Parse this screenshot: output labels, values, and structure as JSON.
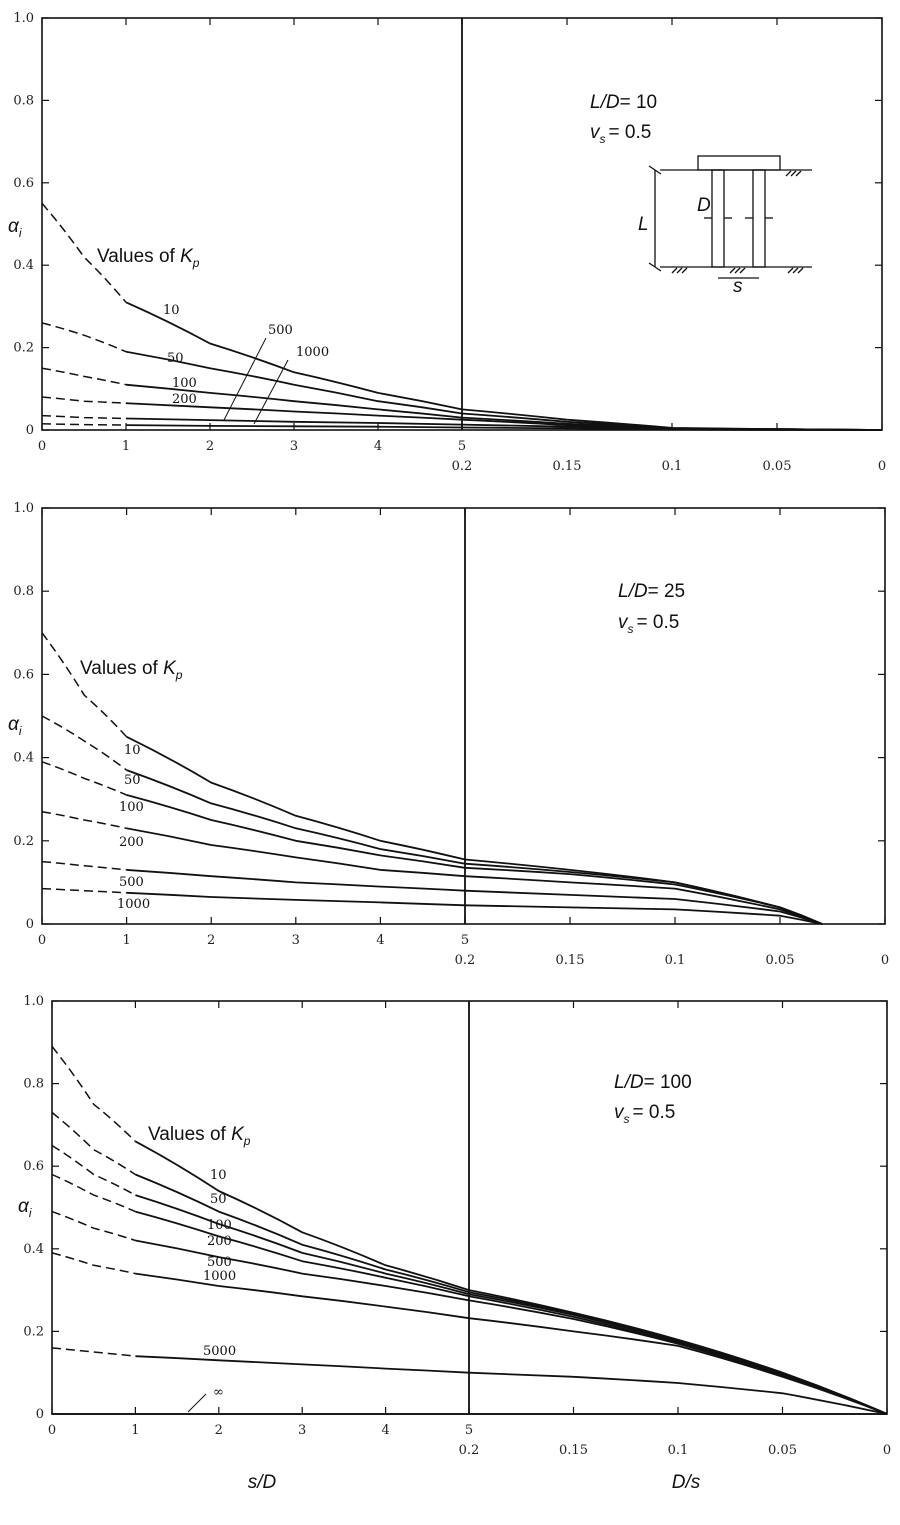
{
  "chart_data": [
    {
      "type": "line",
      "title": "",
      "xlabel": "",
      "x2label": "",
      "ylabel": "αi",
      "annotation": {
        "ratio_label": "L/D",
        "ratio_value": "= 10",
        "nu_label": "vs",
        "nu_value": "= 0.5"
      },
      "kp_label": "Values of Kp",
      "ylim": [
        0,
        1.0
      ],
      "xlim_s_over_D": [
        0,
        5
      ],
      "xlim_D_over_s": [
        0.2,
        0
      ],
      "yticks": [
        "0",
        "0.2",
        "0.4",
        "0.6",
        "0.8",
        "1.0"
      ],
      "xticks_left": [
        "0",
        "1",
        "2",
        "3",
        "4",
        "5"
      ],
      "xticks_right": [
        "0.2",
        "0.15",
        "0.1",
        "0.05",
        "0"
      ],
      "sketch": {
        "cap_label": "L",
        "d_label": "D",
        "s_label": "s"
      },
      "series": [
        {
          "name": "10",
          "values": [
            [
              0,
              0.55
            ],
            [
              0.5,
              0.42
            ],
            [
              1,
              0.31
            ],
            [
              2,
              0.21
            ],
            [
              3,
              0.14
            ],
            [
              4,
              0.09
            ],
            [
              5,
              0.05
            ],
            [
              0.15,
              0.025
            ],
            [
              0.1,
              0.005
            ],
            [
              0.05,
              0.002
            ],
            [
              0,
              0.0
            ]
          ]
        },
        {
          "name": "50",
          "values": [
            [
              0,
              0.26
            ],
            [
              0.5,
              0.23
            ],
            [
              1,
              0.19
            ],
            [
              2,
              0.15
            ],
            [
              3,
              0.11
            ],
            [
              4,
              0.07
            ],
            [
              5,
              0.04
            ],
            [
              0.15,
              0.02
            ],
            [
              0.1,
              0.004
            ],
            [
              0.05,
              0.002
            ],
            [
              0,
              0.0
            ]
          ]
        },
        {
          "name": "100",
          "values": [
            [
              0,
              0.15
            ],
            [
              0.5,
              0.13
            ],
            [
              1,
              0.11
            ],
            [
              2,
              0.09
            ],
            [
              3,
              0.07
            ],
            [
              4,
              0.05
            ],
            [
              5,
              0.03
            ],
            [
              0.15,
              0.015
            ],
            [
              0.1,
              0.004
            ],
            [
              0.05,
              0.002
            ],
            [
              0,
              0.0
            ]
          ]
        },
        {
          "name": "200",
          "values": [
            [
              0,
              0.08
            ],
            [
              0.5,
              0.07
            ],
            [
              1,
              0.065
            ],
            [
              2,
              0.055
            ],
            [
              3,
              0.045
            ],
            [
              4,
              0.035
            ],
            [
              5,
              0.025
            ],
            [
              0.15,
              0.012
            ],
            [
              0.1,
              0.003
            ],
            [
              0.05,
              0.002
            ],
            [
              0,
              0.0
            ]
          ]
        },
        {
          "name": "500",
          "values": [
            [
              0,
              0.035
            ],
            [
              0.5,
              0.03
            ],
            [
              1,
              0.028
            ],
            [
              2,
              0.024
            ],
            [
              3,
              0.02
            ],
            [
              4,
              0.017
            ],
            [
              5,
              0.013
            ],
            [
              0.15,
              0.008
            ],
            [
              0.1,
              0.002
            ],
            [
              0.05,
              0.001
            ],
            [
              0,
              0.0
            ]
          ]
        },
        {
          "name": "1000",
          "values": [
            [
              0,
              0.015
            ],
            [
              0.5,
              0.013
            ],
            [
              1,
              0.012
            ],
            [
              2,
              0.01
            ],
            [
              3,
              0.009
            ],
            [
              4,
              0.008
            ],
            [
              5,
              0.006
            ],
            [
              0.15,
              0.004
            ],
            [
              0.1,
              0.001
            ],
            [
              0.05,
              0.0
            ],
            [
              0,
              0.0
            ]
          ]
        }
      ]
    },
    {
      "type": "line",
      "title": "",
      "xlabel": "",
      "x2label": "",
      "ylabel": "αi",
      "annotation": {
        "ratio_label": "L/D",
        "ratio_value": "= 25",
        "nu_label": "vs",
        "nu_value": "= 0.5"
      },
      "kp_label": "Values of Kp",
      "ylim": [
        0,
        1.0
      ],
      "xlim_s_over_D": [
        0,
        5
      ],
      "xlim_D_over_s": [
        0.2,
        0
      ],
      "yticks": [
        "0",
        "0.2",
        "0.4",
        "0.6",
        "0.8",
        "1.0"
      ],
      "xticks_left": [
        "0",
        "1",
        "2",
        "3",
        "4",
        "5"
      ],
      "xticks_right": [
        "0.2",
        "0.15",
        "0.1",
        "0.05",
        "0"
      ],
      "series": [
        {
          "name": "10",
          "values": [
            [
              0,
              0.7
            ],
            [
              0.5,
              0.55
            ],
            [
              1,
              0.45
            ],
            [
              2,
              0.34
            ],
            [
              3,
              0.26
            ],
            [
              4,
              0.2
            ],
            [
              5,
              0.155
            ],
            [
              0.15,
              0.13
            ],
            [
              0.1,
              0.1
            ],
            [
              0.05,
              0.04
            ],
            [
              0.03,
              0.0
            ]
          ]
        },
        {
          "name": "50",
          "values": [
            [
              0,
              0.5
            ],
            [
              0.5,
              0.44
            ],
            [
              1,
              0.37
            ],
            [
              2,
              0.29
            ],
            [
              3,
              0.23
            ],
            [
              4,
              0.18
            ],
            [
              5,
              0.145
            ],
            [
              0.15,
              0.125
            ],
            [
              0.1,
              0.1
            ],
            [
              0.05,
              0.04
            ],
            [
              0.03,
              0.0
            ]
          ]
        },
        {
          "name": "100",
          "values": [
            [
              0,
              0.39
            ],
            [
              0.5,
              0.35
            ],
            [
              1,
              0.31
            ],
            [
              2,
              0.25
            ],
            [
              3,
              0.2
            ],
            [
              4,
              0.165
            ],
            [
              5,
              0.135
            ],
            [
              0.15,
              0.12
            ],
            [
              0.1,
              0.095
            ],
            [
              0.05,
              0.04
            ],
            [
              0.03,
              0.0
            ]
          ]
        },
        {
          "name": "200",
          "values": [
            [
              0,
              0.27
            ],
            [
              0.5,
              0.25
            ],
            [
              1,
              0.23
            ],
            [
              2,
              0.19
            ],
            [
              3,
              0.16
            ],
            [
              4,
              0.13
            ],
            [
              5,
              0.115
            ],
            [
              0.15,
              0.1
            ],
            [
              0.1,
              0.085
            ],
            [
              0.05,
              0.035
            ],
            [
              0.03,
              0.0
            ]
          ]
        },
        {
          "name": "500",
          "values": [
            [
              0,
              0.15
            ],
            [
              0.5,
              0.14
            ],
            [
              1,
              0.13
            ],
            [
              2,
              0.115
            ],
            [
              3,
              0.1
            ],
            [
              4,
              0.09
            ],
            [
              5,
              0.08
            ],
            [
              0.15,
              0.07
            ],
            [
              0.1,
              0.06
            ],
            [
              0.05,
              0.03
            ],
            [
              0.03,
              0.0
            ]
          ]
        },
        {
          "name": "1000",
          "values": [
            [
              0,
              0.085
            ],
            [
              0.5,
              0.08
            ],
            [
              1,
              0.075
            ],
            [
              2,
              0.065
            ],
            [
              3,
              0.058
            ],
            [
              4,
              0.052
            ],
            [
              5,
              0.045
            ],
            [
              0.15,
              0.04
            ],
            [
              0.1,
              0.035
            ],
            [
              0.05,
              0.02
            ],
            [
              0.03,
              0.0
            ]
          ]
        }
      ]
    },
    {
      "type": "line",
      "title": "",
      "xlabel": "s/D",
      "x2label": "D/s",
      "ylabel": "αi",
      "annotation": {
        "ratio_label": "L/D",
        "ratio_value": "= 100",
        "nu_label": "vs",
        "nu_value": "= 0.5"
      },
      "kp_label": "Values of Kp",
      "ylim": [
        0,
        1.0
      ],
      "xlim_s_over_D": [
        0,
        5
      ],
      "xlim_D_over_s": [
        0.2,
        0
      ],
      "yticks": [
        "0",
        "0.2",
        "0.4",
        "0.6",
        "0.8",
        "1.0"
      ],
      "xticks_left": [
        "0",
        "1",
        "2",
        "3",
        "4",
        "5"
      ],
      "xticks_right": [
        "0.2",
        "0.15",
        "0.1",
        "0.05",
        "0"
      ],
      "series": [
        {
          "name": "10",
          "values": [
            [
              0,
              0.89
            ],
            [
              0.5,
              0.75
            ],
            [
              1,
              0.66
            ],
            [
              2,
              0.54
            ],
            [
              3,
              0.44
            ],
            [
              4,
              0.36
            ],
            [
              5,
              0.3
            ],
            [
              0.15,
              0.245
            ],
            [
              0.1,
              0.18
            ],
            [
              0.05,
              0.1
            ],
            [
              0,
              0.0
            ]
          ]
        },
        {
          "name": "50",
          "values": [
            [
              0,
              0.73
            ],
            [
              0.5,
              0.64
            ],
            [
              1,
              0.58
            ],
            [
              2,
              0.49
            ],
            [
              3,
              0.41
            ],
            [
              4,
              0.35
            ],
            [
              5,
              0.295
            ],
            [
              0.15,
              0.243
            ],
            [
              0.1,
              0.178
            ],
            [
              0.05,
              0.1
            ],
            [
              0,
              0.0
            ]
          ]
        },
        {
          "name": "100",
          "values": [
            [
              0,
              0.65
            ],
            [
              0.5,
              0.58
            ],
            [
              1,
              0.53
            ],
            [
              2,
              0.46
            ],
            [
              3,
              0.39
            ],
            [
              4,
              0.34
            ],
            [
              5,
              0.29
            ],
            [
              0.15,
              0.24
            ],
            [
              0.1,
              0.175
            ],
            [
              0.05,
              0.098
            ],
            [
              0,
              0.0
            ]
          ]
        },
        {
          "name": "200",
          "values": [
            [
              0,
              0.58
            ],
            [
              0.5,
              0.53
            ],
            [
              1,
              0.49
            ],
            [
              2,
              0.43
            ],
            [
              3,
              0.37
            ],
            [
              4,
              0.33
            ],
            [
              5,
              0.285
            ],
            [
              0.15,
              0.235
            ],
            [
              0.1,
              0.172
            ],
            [
              0.05,
              0.095
            ],
            [
              0,
              0.0
            ]
          ]
        },
        {
          "name": "500",
          "values": [
            [
              0,
              0.49
            ],
            [
              0.5,
              0.45
            ],
            [
              1,
              0.42
            ],
            [
              2,
              0.38
            ],
            [
              3,
              0.34
            ],
            [
              4,
              0.31
            ],
            [
              5,
              0.275
            ],
            [
              0.15,
              0.23
            ],
            [
              0.1,
              0.17
            ],
            [
              0.05,
              0.092
            ],
            [
              0,
              0.0
            ]
          ]
        },
        {
          "name": "1000",
          "values": [
            [
              0,
              0.39
            ],
            [
              0.5,
              0.36
            ],
            [
              1,
              0.34
            ],
            [
              2,
              0.31
            ],
            [
              3,
              0.285
            ],
            [
              4,
              0.26
            ],
            [
              5,
              0.232
            ],
            [
              0.15,
              0.2
            ],
            [
              0.1,
              0.165
            ],
            [
              0.05,
              0.09
            ],
            [
              0,
              0.0
            ]
          ]
        },
        {
          "name": "5000",
          "values": [
            [
              0,
              0.16
            ],
            [
              0.5,
              0.15
            ],
            [
              1,
              0.14
            ],
            [
              2,
              0.13
            ],
            [
              3,
              0.12
            ],
            [
              4,
              0.11
            ],
            [
              5,
              0.1
            ],
            [
              0.15,
              0.09
            ],
            [
              0.1,
              0.075
            ],
            [
              0.05,
              0.05
            ],
            [
              0,
              0.0
            ]
          ]
        },
        {
          "name": "∞",
          "values": [
            [
              0,
              0.0
            ],
            [
              1,
              0.0
            ],
            [
              2,
              0.0
            ],
            [
              3,
              0.0
            ],
            [
              4,
              0.0
            ],
            [
              5,
              0.0
            ],
            [
              0.15,
              0.0
            ],
            [
              0.1,
              0.0
            ],
            [
              0.05,
              0.0
            ],
            [
              0,
              0.0
            ]
          ]
        }
      ]
    }
  ]
}
